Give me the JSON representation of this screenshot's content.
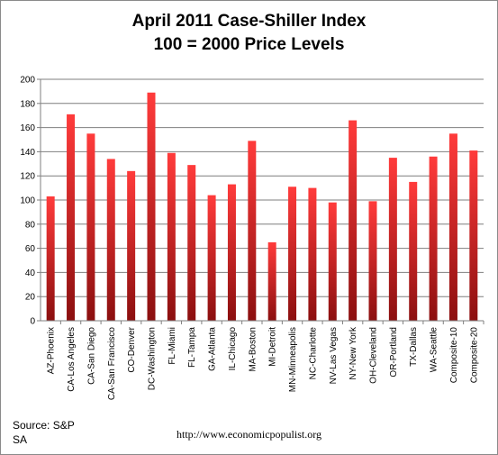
{
  "title_lines": [
    "April 2011 Case-Shiller Index",
    "100 = 2000 Price Levels"
  ],
  "source_lines": [
    "Source: S&P",
    "SA"
  ],
  "url": "http://www.economicpopulist.org",
  "colors": {
    "bar_top": "#ff3b3b",
    "bar_bottom": "#8b0f0f",
    "axis": "#7f7f7f",
    "grid": "#7f7f7f"
  },
  "chart_data": {
    "type": "bar",
    "title": "April 2011 Case-Shiller Index",
    "subtitle": "100 = 2000 Price Levels",
    "categories": [
      "AZ-Phoenix",
      "CA-Los Angeles",
      "CA-San Diego",
      "CA-San Francisco",
      "CO-Denver",
      "DC-Washington",
      "FL-Miami",
      "FL-Tampa",
      "GA-Atlanta",
      "IL-Chicago",
      "MA-Boston",
      "MI-Detroit",
      "MN-Minneapolis",
      "NC-Charlotte",
      "NV-Las Vegas",
      "NY-New York",
      "OH-Cleveland",
      "OR-Portland",
      "TX-Dallas",
      "WA-Seattle",
      "Composite-10",
      "Composite-20"
    ],
    "values": [
      103,
      171,
      155,
      134,
      124,
      189,
      139,
      129,
      104,
      113,
      149,
      65,
      111,
      110,
      98,
      166,
      99,
      135,
      115,
      136,
      155,
      141
    ],
    "ylim": [
      0,
      200
    ],
    "yticks": [
      0,
      20,
      40,
      60,
      80,
      100,
      120,
      140,
      160,
      180,
      200
    ],
    "xlabel": "",
    "ylabel": "",
    "grid": true,
    "legend": "none"
  }
}
